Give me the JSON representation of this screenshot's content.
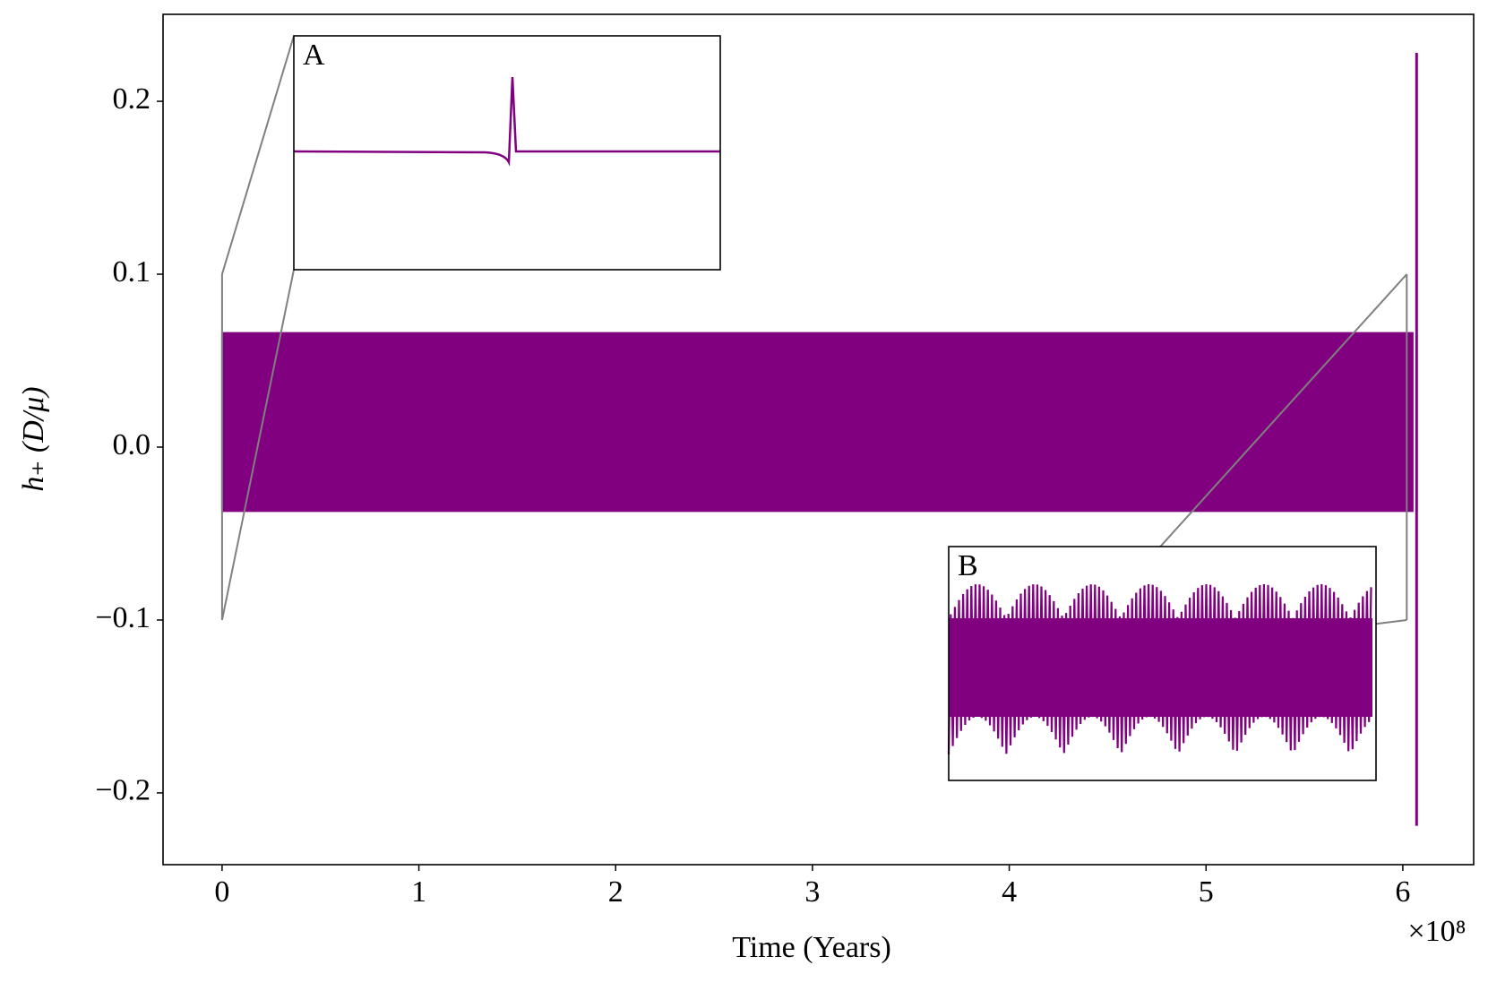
{
  "chart_data": {
    "type": "line",
    "ylabel": "h₊ (D/μ)",
    "xlabel": "Time (Years)",
    "x_offset_label": "×10⁸",
    "xlim": [
      -30000000,
      636000000
    ],
    "ylim": [
      -0.2415,
      0.2503
    ],
    "xticks": [
      {
        "value": 0,
        "label": "0"
      },
      {
        "value": 100000000,
        "label": "1"
      },
      {
        "value": 200000000,
        "label": "2"
      },
      {
        "value": 300000000,
        "label": "3"
      },
      {
        "value": 400000000,
        "label": "4"
      },
      {
        "value": 500000000,
        "label": "5"
      },
      {
        "value": 600000000,
        "label": "6"
      }
    ],
    "yticks": [
      0.2,
      0.1,
      {
        "value": 0,
        "label": "0.0"
      },
      {
        "value": -0.1,
        "label": "−0.1"
      },
      {
        "value": -0.2,
        "label": "−0.2"
      }
    ],
    "series": [
      {
        "color": "#800080",
        "x": [
          0,
          50000000,
          100000000,
          150000000,
          200000000,
          250000000,
          300000000,
          350000000,
          400000000,
          450000000,
          500000000,
          550000000,
          605000000
        ],
        "values": [
          0.066,
          0.066,
          0.066,
          0.066,
          0.066,
          0.066,
          0.066,
          0.066,
          0.066,
          0.066,
          0.066,
          0.066,
          0.066
        ],
        "lower": [
          -0.037,
          -0.037,
          -0.037,
          -0.037,
          -0.037,
          -0.037,
          -0.037,
          -0.037,
          -0.037,
          -0.037,
          -0.037,
          -0.037,
          -0.037
        ]
      },
      {
        "color": "#800080",
        "x": [
          607000000,
          607000000
        ],
        "values": [
          0.228,
          -0.219
        ]
      }
    ],
    "zoom_regions": [
      {
        "label": "A",
        "x": 0,
        "ylim": [
          -0.1,
          0.1
        ]
      },
      {
        "label": "B",
        "x": 602000000,
        "ylim": [
          -0.1,
          0.1
        ]
      }
    ]
  }
}
